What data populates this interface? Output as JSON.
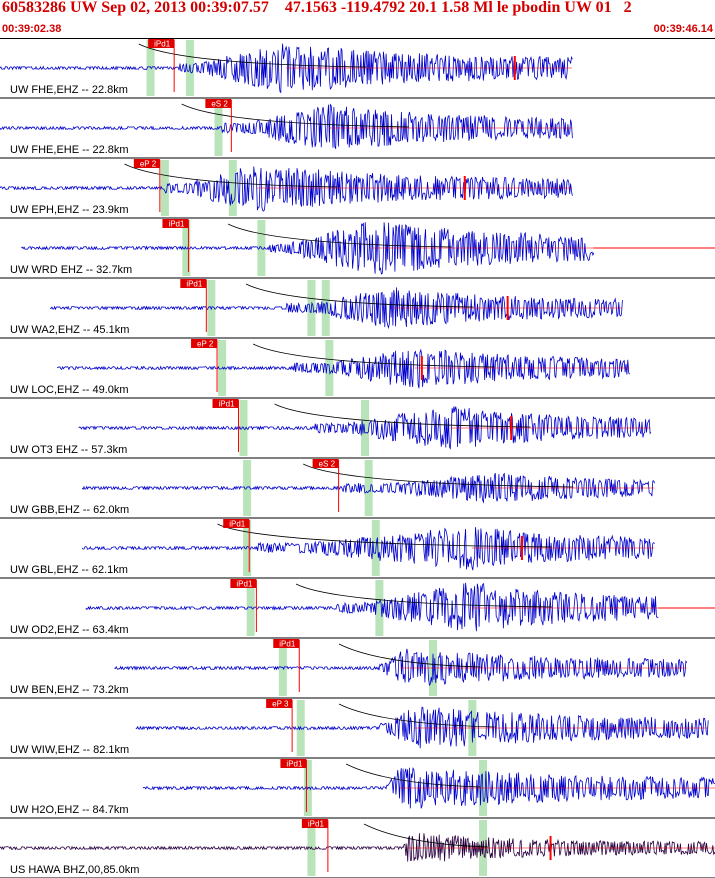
{
  "header": {
    "title": "60583286 UW Sep 02, 2013 00:39:07.57    47.1563 -119.4792 20.1 1.58 Ml le pbodin UW 01   2",
    "start_time": "00:39:02.38",
    "end_time": "00:39:46.14"
  },
  "colors": {
    "header_text": "#d40000",
    "trace": "#0000cc",
    "trace_alt": "#2a0040",
    "pick": "#ff0000",
    "pick_box": "#e00000",
    "highlight": "#b9e4b9",
    "separator": "#000000"
  },
  "chart_data": {
    "type": "line",
    "xlabel": "",
    "ylabel": "",
    "xlim": [
      "00:39:02.38",
      "00:39:46.14"
    ],
    "channels": [
      {
        "label": "UW FHE,EHZ -- 22.8km",
        "pick_label": "iPd1",
        "pick_x": 0.21,
        "greens": [
          0.205,
          0.26
        ],
        "start": 0.0,
        "end": 0.8,
        "onset": 0.25,
        "peak": 0.4,
        "amp": 0.95,
        "coda": 0.55,
        "color": "trace",
        "spike": 0.72,
        "tail_end": 0.8
      },
      {
        "label": "UW FHE,EHE -- 22.8km",
        "pick_label": "eS 2",
        "pick_x": 0.29,
        "greens": [
          0.3
        ],
        "start": 0.0,
        "end": 0.8,
        "onset": 0.31,
        "peak": 0.46,
        "amp": 0.85,
        "coda": 0.55,
        "color": "trace",
        "spike": null,
        "tail_end": 0.8
      },
      {
        "label": "UW EPH,EHZ -- 23.9km",
        "pick_label": "eP 2",
        "pick_x": 0.19,
        "greens": [
          0.225,
          0.32
        ],
        "start": 0.0,
        "end": 0.8,
        "onset": 0.23,
        "peak": 0.36,
        "amp": 0.9,
        "coda": 0.55,
        "color": "trace",
        "spike": 0.65,
        "tail_end": 0.8
      },
      {
        "label": "UW WRD EHZ -- 32.7km",
        "pick_label": "iPd1",
        "pick_x": 0.23,
        "greens": [
          0.255,
          0.36
        ],
        "start": 0.03,
        "end": 0.83,
        "onset": 0.375,
        "peak": 0.52,
        "amp": 1.0,
        "coda": 0.6,
        "color": "trace",
        "spike": null,
        "tail_end": 1.0
      },
      {
        "label": "UW WA2,EHZ -- 45.1km",
        "pick_label": "iPd1",
        "pick_x": 0.255,
        "greens": [
          0.29,
          0.43,
          0.45
        ],
        "start": 0.07,
        "end": 0.87,
        "onset": 0.4,
        "peak": 0.55,
        "amp": 0.75,
        "coda": 0.5,
        "color": "trace",
        "spike": 0.71,
        "tail_end": 0.87
      },
      {
        "label": "UW LOC,EHZ -- 49.0km",
        "pick_label": "eP 2",
        "pick_x": 0.27,
        "greens": [
          0.305,
          0.455
        ],
        "start": 0.08,
        "end": 0.88,
        "onset": 0.41,
        "peak": 0.58,
        "amp": 0.75,
        "coda": 0.55,
        "color": "trace",
        "spike": 0.59,
        "tail_end": 0.88
      },
      {
        "label": "UW OT3 EHZ -- 57.3km",
        "pick_label": "iPd1",
        "pick_x": 0.3,
        "greens": [
          0.335,
          0.505
        ],
        "start": 0.11,
        "end": 0.91,
        "onset": 0.44,
        "peak": 0.63,
        "amp": 0.8,
        "coda": 0.45,
        "color": "trace",
        "spike": 0.715,
        "tail_end": 0.91
      },
      {
        "label": "UW GBB,EHZ -- 62.0km",
        "pick_label": "eS 2",
        "pick_x": 0.44,
        "greens": [
          0.34,
          0.51
        ],
        "start": 0.115,
        "end": 0.915,
        "onset": 0.48,
        "peak": 0.69,
        "amp": 0.55,
        "coda": 0.6,
        "color": "trace",
        "spike": null,
        "tail_end": 0.915
      },
      {
        "label": "UW GBL,EHZ -- 62.1km",
        "pick_label": "iPd1",
        "pick_x": 0.315,
        "greens": [
          0.34,
          0.52
        ],
        "start": 0.115,
        "end": 0.915,
        "onset": 0.36,
        "peak": 0.66,
        "amp": 0.8,
        "coda": 0.5,
        "color": "trace",
        "spike": 0.73,
        "tail_end": 0.915
      },
      {
        "label": "UW OD2,EHZ -- 63.4km",
        "pick_label": "iPd1",
        "pick_x": 0.325,
        "greens": [
          0.345,
          0.525
        ],
        "start": 0.12,
        "end": 0.92,
        "onset": 0.47,
        "peak": 0.66,
        "amp": 0.95,
        "coda": 0.4,
        "color": "trace",
        "spike": null,
        "tail_end": 1.0
      },
      {
        "label": "UW BEN,EHZ -- 73.2km",
        "pick_label": "iPd1",
        "pick_x": 0.385,
        "greens": [
          0.39,
          0.6
        ],
        "start": 0.16,
        "end": 0.96,
        "onset": 0.53,
        "peak": 0.56,
        "amp": 0.7,
        "coda": 0.75,
        "color": "trace",
        "spike": null,
        "tail_end": 0.96
      },
      {
        "label": "UW WIW,EHZ -- 82.1km",
        "pick_label": "eP 3",
        "pick_x": 0.375,
        "greens": [
          0.415,
          0.655
        ],
        "start": 0.19,
        "end": 0.99,
        "onset": 0.53,
        "peak": 0.58,
        "amp": 0.8,
        "coda": 0.75,
        "color": "trace",
        "spike": null,
        "tail_end": 0.99
      },
      {
        "label": "UW H2O,EHZ -- 84.7km",
        "pick_label": "iPd1",
        "pick_x": 0.395,
        "greens": [
          0.425,
          0.67
        ],
        "start": 0.2,
        "end": 1.0,
        "onset": 0.54,
        "peak": 0.56,
        "amp": 0.85,
        "coda": 0.75,
        "color": "trace",
        "spike": null,
        "tail_end": 1.0
      },
      {
        "label": "US HAWA BHZ,00,85.0km",
        "pick_label": "iPd1",
        "pick_x": 0.425,
        "greens": [
          0.43,
          0.67
        ],
        "start": 0.0,
        "end": 1.0,
        "onset": 0.565,
        "peak": 0.57,
        "amp": 0.6,
        "coda": 0.45,
        "color": "trace_alt",
        "spike": 0.77,
        "tail_end": 1.0
      }
    ]
  }
}
